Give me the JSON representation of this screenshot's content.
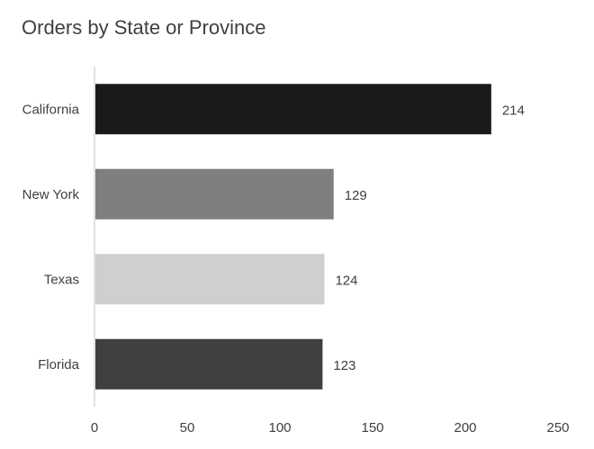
{
  "chart_data": {
    "type": "bar",
    "orientation": "horizontal",
    "title": "Orders by State or Province",
    "categories": [
      "California",
      "New York",
      "Texas",
      "Florida"
    ],
    "values": [
      214,
      129,
      124,
      123
    ],
    "colors": [
      "#1a1a1a",
      "#7f7f7f",
      "#d0cece",
      "#404040"
    ],
    "xlim": [
      0,
      250
    ],
    "xticks": [
      0,
      50,
      100,
      150,
      200,
      250
    ],
    "grid": false,
    "legend": "none",
    "data_labels": true
  }
}
